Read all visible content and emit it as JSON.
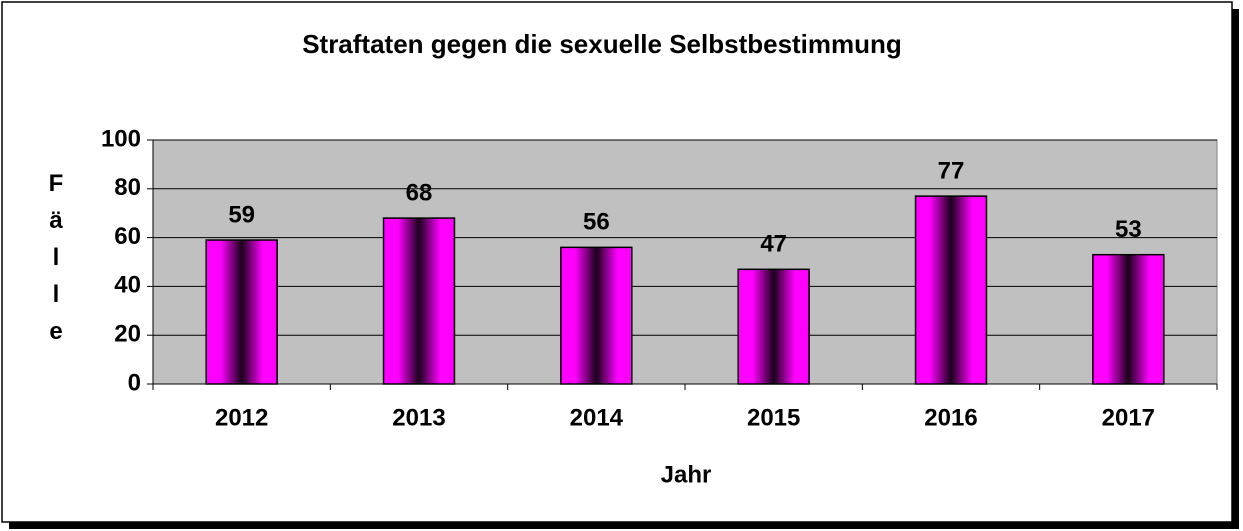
{
  "chart_data": {
    "type": "bar",
    "title": "Straftaten gegen die sexuelle Selbstbestimmung",
    "x_label": "Jahr",
    "y_label": "Fälle",
    "categories": [
      "2012",
      "2013",
      "2014",
      "2015",
      "2016",
      "2017"
    ],
    "values": [
      59,
      68,
      56,
      47,
      77,
      53
    ],
    "color": "#ff00ff",
    "ylim": [
      0,
      100
    ],
    "yticks": [
      0,
      20,
      40,
      60,
      80,
      100
    ],
    "grid": true
  }
}
